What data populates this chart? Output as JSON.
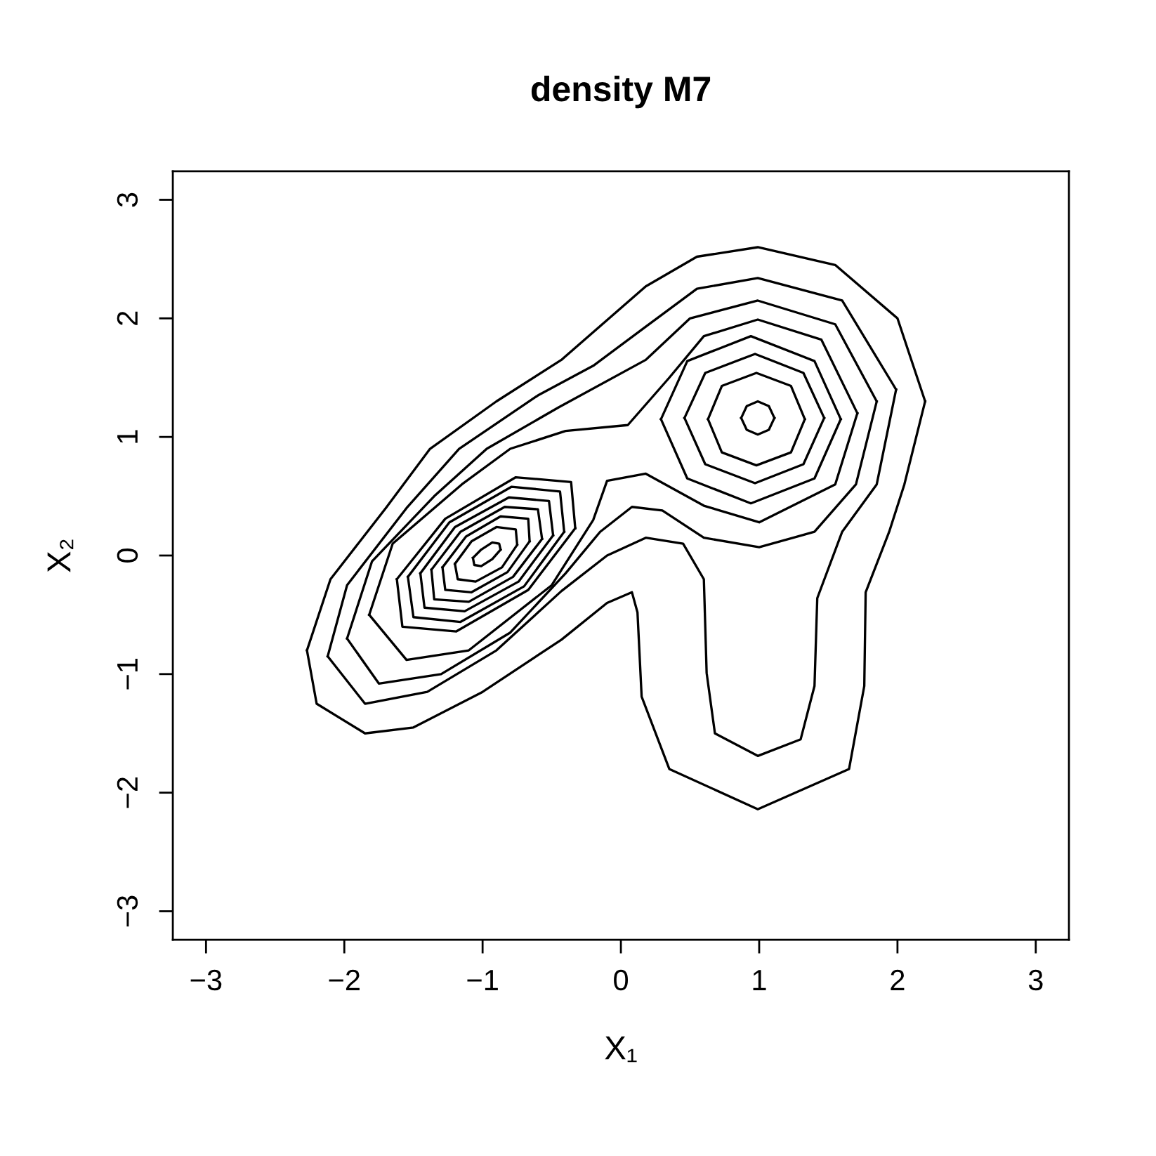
{
  "chart_data": {
    "type": "line",
    "title": "density M7",
    "xlabel": "X₁",
    "ylabel": "X₂",
    "xlim": [
      -3.24,
      3.24
    ],
    "ylim": [
      -3.24,
      3.24
    ],
    "xticks": [
      -3,
      -2,
      -1,
      0,
      1,
      2,
      3
    ],
    "yticks": [
      -3,
      -2,
      -1,
      0,
      1,
      2,
      3
    ],
    "grid": false,
    "legend": false,
    "series": [
      {
        "color": "#000000",
        "x": [
          -2.27,
          -2.1,
          -1.7,
          -1.38,
          -0.9,
          -0.43,
          0.18,
          0.55,
          0.99,
          1.55,
          2.0,
          2.2
        ],
        "values": [
          -0.8,
          -0.2,
          0.4,
          0.9,
          1.3,
          1.65,
          2.27,
          2.52,
          2.6,
          2.45,
          2.0,
          1.3
        ]
      },
      {
        "color": "#000000",
        "x": [
          -2.27,
          -2.2,
          -1.85,
          -1.5,
          -1.0,
          -0.43,
          -0.1,
          0.08,
          0.12,
          0.15,
          0.35,
          0.99,
          1.65,
          1.76,
          1.77,
          1.94,
          2.05,
          2.2
        ],
        "values": [
          -0.8,
          -1.25,
          -1.5,
          -1.45,
          -1.15,
          -0.71,
          -0.4,
          -0.31,
          -0.48,
          -1.19,
          -1.8,
          -2.14,
          -1.8,
          -1.1,
          -0.31,
          0.2,
          0.6,
          1.3
        ]
      },
      {
        "color": "#000000",
        "x": [
          -2.12,
          -1.98,
          -1.55,
          -1.17,
          -0.6,
          -0.2,
          0.18,
          0.55,
          0.99,
          1.6,
          1.99
        ],
        "values": [
          -0.85,
          -0.25,
          0.4,
          0.9,
          1.35,
          1.6,
          1.93,
          2.25,
          2.34,
          2.15,
          1.4
        ]
      },
      {
        "color": "#000000",
        "x": [
          -2.12,
          -1.85,
          -1.4,
          -0.9,
          -0.43,
          -0.1,
          0.18,
          0.45,
          0.6,
          0.62,
          0.68,
          0.99,
          1.3,
          1.4,
          1.42,
          1.6,
          1.85,
          1.99
        ],
        "values": [
          -0.85,
          -1.25,
          -1.15,
          -0.8,
          -0.3,
          0.0,
          0.15,
          0.1,
          -0.2,
          -0.99,
          -1.5,
          -1.69,
          -1.55,
          -1.1,
          -0.36,
          0.2,
          0.6,
          1.4
        ]
      },
      {
        "color": "#000000",
        "x": [
          -1.98,
          -1.8,
          -1.35,
          -0.97,
          -0.45,
          0.18,
          0.5,
          0.99,
          1.55,
          1.85
        ],
        "values": [
          -0.7,
          -0.05,
          0.5,
          0.9,
          1.25,
          1.65,
          2.0,
          2.15,
          1.95,
          1.3
        ]
      },
      {
        "color": "#000000",
        "x": [
          -1.98,
          -1.75,
          -1.3,
          -0.8,
          -0.4,
          -0.15,
          0.08,
          0.3,
          0.6,
          1.0,
          1.4,
          1.7,
          1.85
        ],
        "values": [
          -0.7,
          -1.08,
          -1.0,
          -0.65,
          -0.15,
          0.2,
          0.41,
          0.38,
          0.15,
          0.07,
          0.2,
          0.6,
          1.3
        ]
      },
      {
        "color": "#000000",
        "x": [
          -1.82,
          -1.65,
          -1.15,
          -0.8,
          -0.4,
          0.05,
          0.35,
          0.6,
          0.99,
          1.45,
          1.71
        ],
        "values": [
          -0.5,
          0.1,
          0.6,
          0.9,
          1.05,
          1.1,
          1.5,
          1.85,
          1.99,
          1.82,
          1.2
        ]
      },
      {
        "color": "#000000",
        "x": [
          -1.82,
          -1.55,
          -1.1,
          -0.5,
          -0.2,
          -0.1,
          0.18,
          0.6,
          1.0,
          1.55,
          1.71
        ],
        "values": [
          -0.5,
          -0.88,
          -0.8,
          -0.25,
          0.3,
          0.63,
          0.69,
          0.42,
          0.28,
          0.6,
          1.2
        ]
      },
      {
        "color": "#000000",
        "x": [
          0.29,
          0.48,
          0.94,
          1.4,
          1.59
        ],
        "values": [
          1.15,
          1.64,
          1.85,
          1.64,
          1.15
        ]
      },
      {
        "color": "#000000",
        "x": [
          0.29,
          0.48,
          0.94,
          1.4,
          1.59
        ],
        "values": [
          1.15,
          0.65,
          0.44,
          0.65,
          1.15
        ]
      },
      {
        "color": "#000000",
        "x": [
          0.46,
          0.61,
          0.97,
          1.32,
          1.47
        ],
        "values": [
          1.16,
          1.54,
          1.7,
          1.54,
          1.16
        ]
      },
      {
        "color": "#000000",
        "x": [
          0.46,
          0.61,
          0.97,
          1.32,
          1.47
        ],
        "values": [
          1.16,
          0.77,
          0.61,
          0.77,
          1.16
        ]
      },
      {
        "color": "#000000",
        "x": [
          0.63,
          0.73,
          0.98,
          1.23,
          1.33
        ],
        "values": [
          1.15,
          1.43,
          1.54,
          1.43,
          1.15
        ]
      },
      {
        "color": "#000000",
        "x": [
          0.63,
          0.73,
          0.98,
          1.23,
          1.33
        ],
        "values": [
          1.15,
          0.87,
          0.76,
          0.87,
          1.15
        ]
      },
      {
        "color": "#000000",
        "x": [
          0.87,
          0.91,
          0.99,
          1.07,
          1.11
        ],
        "values": [
          1.16,
          1.26,
          1.3,
          1.26,
          1.16
        ]
      },
      {
        "color": "#000000",
        "x": [
          0.87,
          0.91,
          0.99,
          1.07,
          1.11
        ],
        "values": [
          1.16,
          1.06,
          1.02,
          1.06,
          1.16
        ]
      },
      {
        "color": "#000000",
        "x": [
          -1.62,
          -1.27,
          -0.76,
          -0.36,
          -0.33
        ],
        "values": [
          -0.2,
          0.31,
          0.66,
          0.62,
          0.23
        ]
      },
      {
        "color": "#000000",
        "x": [
          -1.62,
          -1.58,
          -1.19,
          -0.67,
          -0.33
        ],
        "values": [
          -0.2,
          -0.6,
          -0.64,
          -0.29,
          0.23
        ]
      },
      {
        "color": "#000000",
        "x": [
          -1.54,
          -1.24,
          -0.79,
          -0.44,
          -0.41
        ],
        "values": [
          -0.18,
          0.28,
          0.58,
          0.54,
          0.2
        ]
      },
      {
        "color": "#000000",
        "x": [
          -1.54,
          -1.5,
          -1.16,
          -0.7,
          -0.41
        ],
        "values": [
          -0.18,
          -0.52,
          -0.56,
          -0.26,
          0.2
        ]
      },
      {
        "color": "#000000",
        "x": [
          -1.45,
          -1.2,
          -0.81,
          -0.52,
          -0.49
        ],
        "values": [
          -0.15,
          0.24,
          0.49,
          0.46,
          0.17
        ]
      },
      {
        "color": "#000000",
        "x": [
          -1.45,
          -1.42,
          -1.13,
          -0.74,
          -0.49
        ],
        "values": [
          -0.15,
          -0.44,
          -0.47,
          -0.22,
          0.17
        ]
      },
      {
        "color": "#000000",
        "x": [
          -1.37,
          -1.16,
          -0.84,
          -0.6,
          -0.57
        ],
        "values": [
          -0.12,
          0.2,
          0.41,
          0.39,
          0.14
        ]
      },
      {
        "color": "#000000",
        "x": [
          -1.37,
          -1.35,
          -1.1,
          -0.78,
          -0.57
        ],
        "values": [
          -0.12,
          -0.37,
          -0.39,
          -0.18,
          0.14
        ]
      },
      {
        "color": "#000000",
        "x": [
          -1.29,
          -1.12,
          -0.87,
          -0.67,
          -0.66
        ],
        "values": [
          -0.1,
          0.16,
          0.33,
          0.31,
          0.12
        ]
      },
      {
        "color": "#000000",
        "x": [
          -1.29,
          -1.27,
          -1.08,
          -0.82,
          -0.66
        ],
        "values": [
          -0.1,
          -0.29,
          -0.31,
          -0.14,
          0.12
        ]
      },
      {
        "color": "#000000",
        "x": [
          -1.2,
          -1.08,
          -0.9,
          -0.76,
          -0.75
        ],
        "values": [
          -0.07,
          0.12,
          0.24,
          0.22,
          0.09
        ]
      },
      {
        "color": "#000000",
        "x": [
          -1.2,
          -1.18,
          -1.05,
          -0.86,
          -0.75
        ],
        "values": [
          -0.07,
          -0.2,
          -0.22,
          -0.1,
          0.09
        ]
      },
      {
        "color": "#000000",
        "x": [
          -1.07,
          -1.01,
          -0.93,
          -0.88,
          -0.87
        ],
        "values": [
          -0.02,
          0.05,
          0.11,
          0.1,
          0.05
        ]
      },
      {
        "color": "#000000",
        "x": [
          -1.07,
          -1.06,
          -1.01,
          -0.93,
          -0.87
        ],
        "values": [
          -0.02,
          -0.08,
          -0.09,
          -0.03,
          0.05
        ]
      }
    ]
  }
}
